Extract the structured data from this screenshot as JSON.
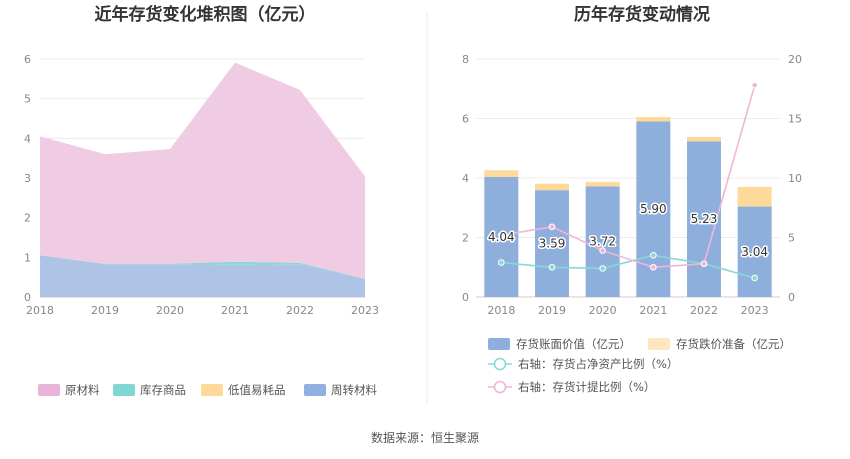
{
  "left_chart": {
    "title": "近年存货变化堆积图（亿元）",
    "chart_data": {
      "type": "area",
      "stacked": true,
      "x": [
        "2018",
        "2019",
        "2020",
        "2021",
        "2022",
        "2023"
      ],
      "series": [
        {
          "name": "周转材料",
          "color": "#aec4e6",
          "values": [
            1.05,
            0.83,
            0.83,
            0.81,
            0.83,
            0.45
          ]
        },
        {
          "name": "低值易耗品",
          "color": "#fdd99a",
          "values": [
            0.0,
            0.0,
            0.0,
            0.0,
            0.0,
            0.0
          ]
        },
        {
          "name": "库存商品",
          "color": "#88d8d5",
          "values": [
            0.0,
            0.01,
            0.01,
            0.08,
            0.03,
            0.01
          ]
        },
        {
          "name": "原材料",
          "color": "#f0cce4",
          "values": [
            3.0,
            2.76,
            2.89,
            5.02,
            4.36,
            2.58
          ]
        }
      ],
      "legend_order": [
        "原材料",
        "库存商品",
        "低值易耗品",
        "周转材料"
      ],
      "legend_colors": [
        "#e8b4d8",
        "#7fd6d2",
        "#fdd99a",
        "#8fb0e0"
      ],
      "ylim": [
        0,
        6
      ],
      "yticks": [
        "0",
        "1",
        "2",
        "3",
        "4",
        "5",
        "6"
      ],
      "grid": true,
      "legend": "bottom"
    }
  },
  "right_chart": {
    "title": "历年存货变动情况",
    "chart_data": {
      "type": "bar",
      "categories": [
        "2018",
        "2019",
        "2020",
        "2021",
        "2022",
        "2023"
      ],
      "series": [
        {
          "name": "存货账面价值（亿元）",
          "color": "#8eaedc",
          "stack": "a",
          "values": [
            4.04,
            3.59,
            3.72,
            5.9,
            5.23,
            3.04
          ],
          "labels": [
            "4.04",
            "3.59",
            "3.72",
            "5.90",
            "5.23",
            "3.04"
          ]
        },
        {
          "name": "存货跌价准备（亿元）",
          "color": "#fdd99a",
          "stack": "a",
          "values": [
            0.22,
            0.22,
            0.15,
            0.15,
            0.15,
            0.66
          ]
        },
        {
          "name": "右轴：存货占净资产比例（%）",
          "type": "line",
          "axis": "right",
          "color": "#88d8d5",
          "values": [
            2.9,
            2.5,
            2.4,
            3.5,
            2.8,
            1.6
          ]
        },
        {
          "name": "右轴：存货计提比例（%）",
          "type": "line",
          "axis": "right",
          "color": "#f0b6d8",
          "values": [
            5.2,
            5.9,
            3.9,
            2.5,
            2.8,
            17.8
          ]
        }
      ],
      "ylim": [
        0,
        8
      ],
      "yticks": [
        "0",
        "2",
        "4",
        "6",
        "8"
      ],
      "y2lim": [
        0,
        20
      ],
      "y2ticks": [
        "0",
        "5",
        "10",
        "15",
        "20"
      ],
      "grid": true,
      "legend": "bottom"
    }
  },
  "footer": {
    "source": "数据来源：恒生聚源"
  }
}
